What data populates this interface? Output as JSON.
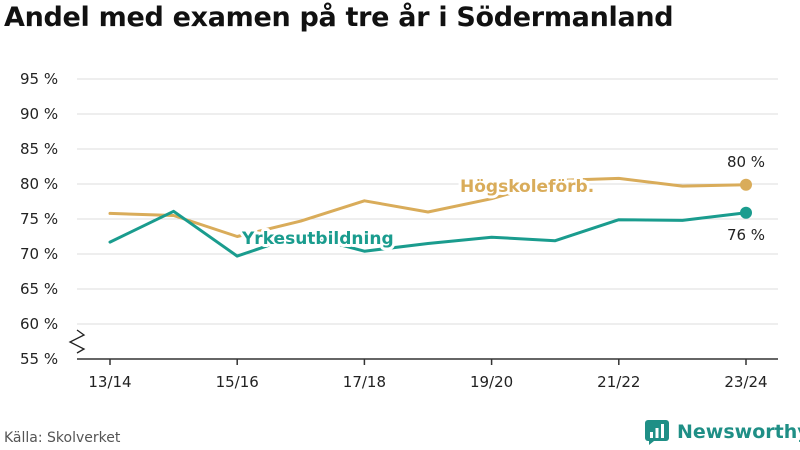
{
  "title": "Andel med examen på tre år i Södermanland",
  "source": "Källa: Skolverket",
  "brand": {
    "name": "Newsworthy",
    "icon": "newsworthy-logo-icon"
  },
  "colors": {
    "hogskole": "#d9ac5a",
    "yrkes": "#1a9c8e",
    "grid": "#dddddd",
    "axis": "#333333"
  },
  "chart_data": {
    "type": "line",
    "title": "Andel med examen på tre år i Södermanland",
    "x": [
      "13/14",
      "14/15",
      "15/16",
      "16/17",
      "17/18",
      "18/19",
      "19/20",
      "20/21",
      "21/22",
      "22/23",
      "23/24"
    ],
    "xtick_labels": [
      "13/14",
      "15/16",
      "17/18",
      "19/20",
      "21/22",
      "23/24"
    ],
    "ytick_labels": [
      "55 %",
      "60 %",
      "65 %",
      "70 %",
      "75 %",
      "80 %",
      "85 %",
      "90 %",
      "95 %"
    ],
    "ylim": [
      55,
      95
    ],
    "axis_break": true,
    "grid": "horizontal",
    "series": [
      {
        "name": "Högskoleförb.",
        "color": "#d9ac5a",
        "values": [
          75.8,
          75.5,
          72.5,
          74.7,
          77.6,
          76.0,
          77.9,
          80.5,
          80.8,
          79.7,
          79.9
        ],
        "end_label": "80 %"
      },
      {
        "name": "Yrkesutbildning",
        "color": "#1a9c8e",
        "values": [
          71.7,
          76.1,
          69.7,
          72.8,
          70.4,
          71.5,
          72.4,
          71.9,
          74.9,
          74.8,
          75.9
        ],
        "end_label": "76 %"
      }
    ]
  }
}
